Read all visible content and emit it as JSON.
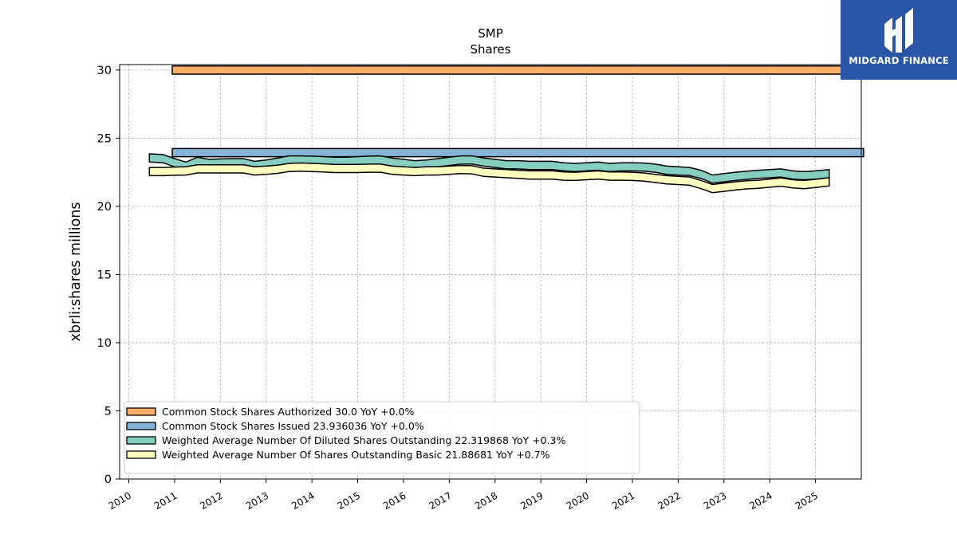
{
  "chart_data": {
    "type": "area",
    "title": "SMP",
    "subtitle": "Shares",
    "ylabel": "xbrli:shares millions",
    "xlabel": "",
    "xlim": [
      2009.8,
      2026.0
    ],
    "ylim": [
      0,
      30.4
    ],
    "yticks": [
      0,
      5,
      10,
      15,
      20,
      25,
      30
    ],
    "xticks": [
      "2010",
      "2011",
      "2012",
      "2013",
      "2014",
      "2015",
      "2016",
      "2017",
      "2018",
      "2019",
      "2020",
      "2021",
      "2022",
      "2023",
      "2024",
      "2025"
    ],
    "grid": true,
    "legend_position": "lower-left",
    "series": [
      {
        "name": "Common Stock Shares Authorized",
        "legend": "Common Stock Shares Authorized  30.0 YoY +0.0%",
        "color": "#ffae66",
        "x": [
          2010.95,
          2026.05
        ],
        "y": [
          30.0,
          30.0
        ]
      },
      {
        "name": "Common Stock Shares Issued",
        "legend": "Common Stock Shares Issued  23.936036 YoY +0.0%",
        "color": "#84b4d8",
        "x": [
          2010.95,
          2026.05
        ],
        "y": [
          23.94,
          23.94
        ]
      },
      {
        "name": "Weighted Average Number Of Diluted Shares Outstanding",
        "legend": "Weighted Average Number Of Diluted Shares Outstanding  22.319868 YoY +0.3%",
        "color": "#86cfc0",
        "x": [
          2010.45,
          2010.75,
          2011.0,
          2011.25,
          2011.5,
          2011.75,
          2012.0,
          2012.25,
          2012.5,
          2012.75,
          2013.0,
          2013.25,
          2013.5,
          2013.75,
          2014.0,
          2014.25,
          2014.5,
          2014.75,
          2015.0,
          2015.25,
          2015.5,
          2015.75,
          2016.0,
          2016.25,
          2016.5,
          2016.75,
          2017.0,
          2017.25,
          2017.5,
          2017.75,
          2018.0,
          2018.25,
          2018.5,
          2018.75,
          2019.0,
          2019.25,
          2019.5,
          2019.75,
          2020.0,
          2020.25,
          2020.5,
          2020.75,
          2021.0,
          2021.25,
          2021.5,
          2021.75,
          2022.0,
          2022.25,
          2022.5,
          2022.75,
          2023.0,
          2023.25,
          2023.5,
          2023.75,
          2024.0,
          2024.25,
          2024.5,
          2024.75,
          2025.0,
          2025.3
        ],
        "y": [
          23.55,
          23.5,
          23.2,
          22.95,
          23.3,
          23.15,
          23.18,
          23.2,
          23.2,
          23.0,
          23.1,
          23.25,
          23.4,
          23.4,
          23.38,
          23.35,
          23.3,
          23.3,
          23.35,
          23.38,
          23.4,
          23.25,
          23.15,
          23.05,
          23.1,
          23.2,
          23.3,
          23.4,
          23.4,
          23.25,
          23.15,
          23.05,
          23.05,
          23.0,
          23.0,
          23.0,
          22.9,
          22.85,
          22.9,
          22.95,
          22.85,
          22.9,
          22.9,
          22.88,
          22.8,
          22.65,
          22.6,
          22.55,
          22.35,
          22.0,
          22.1,
          22.2,
          22.28,
          22.35,
          22.4,
          22.45,
          22.3,
          22.25,
          22.3,
          22.4
        ]
      },
      {
        "name": "Weighted Average Number Of Shares Outstanding Basic",
        "legend": "Weighted Average Number Of Shares Outstanding Basic  21.88681 YoY +0.7%",
        "color": "#ffffc0",
        "x": [
          2010.45,
          2010.75,
          2011.0,
          2011.25,
          2011.5,
          2011.75,
          2012.0,
          2012.25,
          2012.5,
          2012.75,
          2013.0,
          2013.25,
          2013.5,
          2013.75,
          2014.0,
          2014.25,
          2014.5,
          2014.75,
          2015.0,
          2015.25,
          2015.5,
          2015.75,
          2016.0,
          2016.25,
          2016.5,
          2016.75,
          2017.0,
          2017.25,
          2017.5,
          2017.75,
          2018.0,
          2018.25,
          2018.5,
          2018.75,
          2019.0,
          2019.25,
          2019.5,
          2019.75,
          2020.0,
          2020.25,
          2020.5,
          2020.75,
          2021.0,
          2021.25,
          2021.5,
          2021.75,
          2022.0,
          2022.25,
          2022.5,
          2022.75,
          2023.0,
          2023.25,
          2023.5,
          2023.75,
          2024.0,
          2024.25,
          2024.5,
          2024.75,
          2025.0,
          2025.3
        ],
        "y": [
          22.55,
          22.55,
          22.58,
          22.6,
          22.75,
          22.75,
          22.75,
          22.75,
          22.75,
          22.6,
          22.65,
          22.72,
          22.85,
          22.88,
          22.85,
          22.82,
          22.78,
          22.78,
          22.78,
          22.8,
          22.8,
          22.65,
          22.6,
          22.55,
          22.6,
          22.6,
          22.65,
          22.7,
          22.68,
          22.5,
          22.45,
          22.4,
          22.35,
          22.3,
          22.3,
          22.3,
          22.22,
          22.2,
          22.25,
          22.3,
          22.22,
          22.22,
          22.2,
          22.15,
          22.05,
          21.95,
          21.9,
          21.85,
          21.6,
          21.3,
          21.4,
          21.5,
          21.58,
          21.62,
          21.7,
          21.78,
          21.65,
          21.6,
          21.68,
          21.8
        ]
      }
    ]
  },
  "logo": {
    "text": "MIDGARD FINANCE"
  }
}
